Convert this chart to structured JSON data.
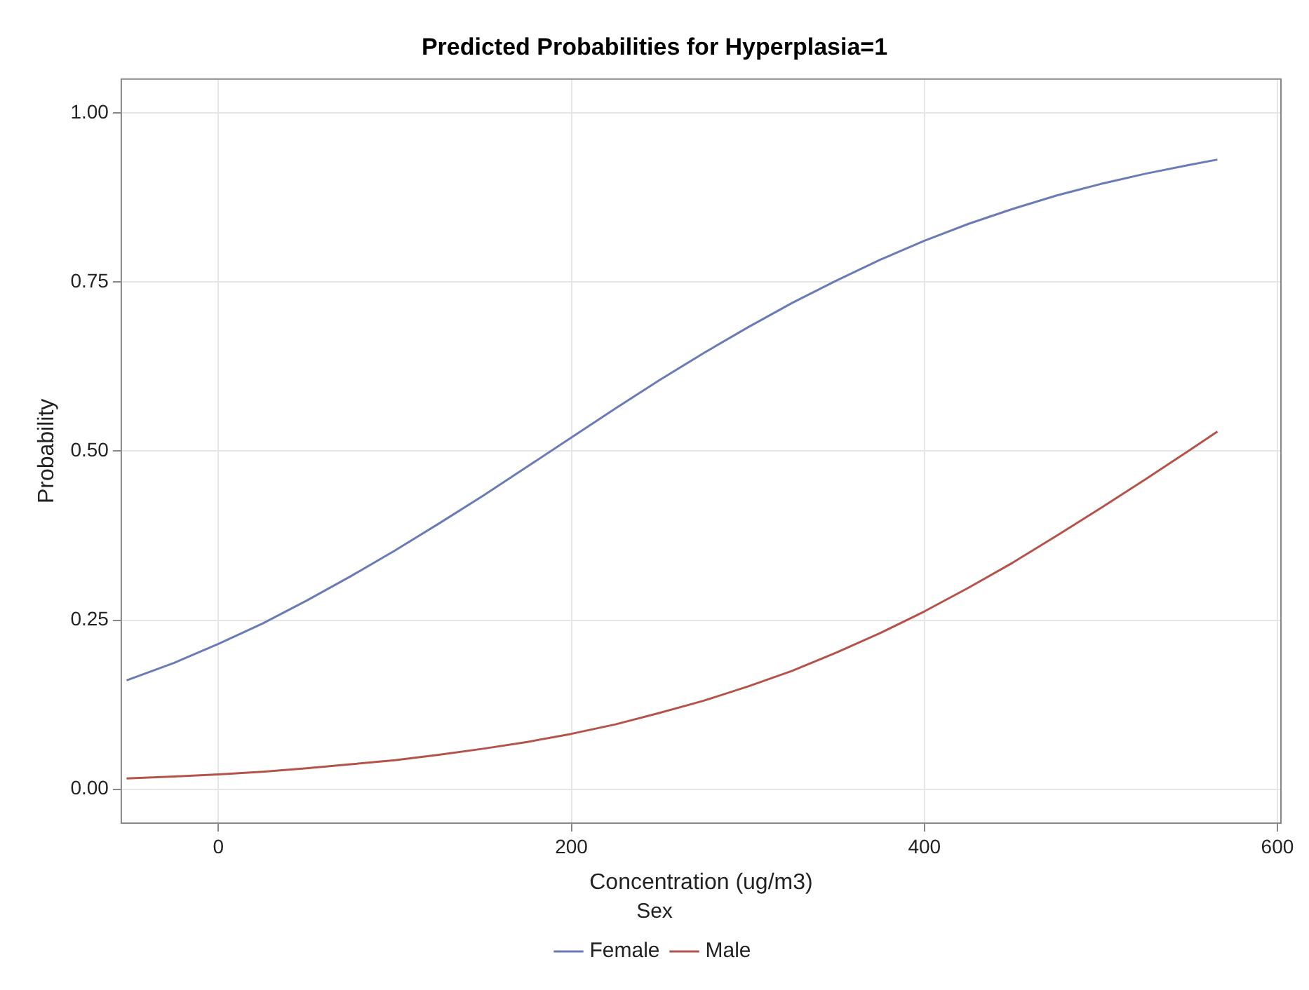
{
  "chart_data": {
    "type": "line",
    "title": "Predicted Probabilities for Hyperplasia=1",
    "xlabel": "Concentration (ug/m3)",
    "ylabel": "Probability",
    "legend_title": "Sex",
    "x": [
      -52,
      -25,
      0,
      25,
      50,
      75,
      100,
      125,
      150,
      175,
      200,
      225,
      250,
      275,
      300,
      325,
      350,
      375,
      400,
      425,
      450,
      475,
      500,
      525,
      550,
      566
    ],
    "series": [
      {
        "name": "Female",
        "color": "#6a7bb8",
        "values": [
          0.161,
          0.187,
          0.215,
          0.245,
          0.279,
          0.315,
          0.353,
          0.393,
          0.434,
          0.477,
          0.52,
          0.563,
          0.605,
          0.645,
          0.683,
          0.719,
          0.752,
          0.783,
          0.811,
          0.836,
          0.858,
          0.878,
          0.895,
          0.91,
          0.923,
          0.931
        ]
      },
      {
        "name": "Male",
        "color": "#b5534a",
        "values": [
          0.016,
          0.019,
          0.022,
          0.026,
          0.031,
          0.037,
          0.043,
          0.051,
          0.06,
          0.07,
          0.082,
          0.096,
          0.113,
          0.131,
          0.152,
          0.175,
          0.202,
          0.231,
          0.263,
          0.298,
          0.335,
          0.375,
          0.416,
          0.458,
          0.501,
          0.529
        ]
      }
    ],
    "xlim": [
      -55,
      602
    ],
    "xticks": [
      0,
      200,
      400,
      600
    ],
    "ylim": [
      -0.05,
      1.05
    ],
    "yticks": [
      {
        "value": 0,
        "label": "0.00"
      },
      {
        "value": 0.25,
        "label": "0.25"
      },
      {
        "value": 0.5,
        "label": "0.50"
      },
      {
        "value": 0.75,
        "label": "0.75"
      },
      {
        "value": 1,
        "label": "1.00"
      }
    ],
    "grid": true,
    "legend": "bottom",
    "marker": "none",
    "line_style": "solid"
  }
}
